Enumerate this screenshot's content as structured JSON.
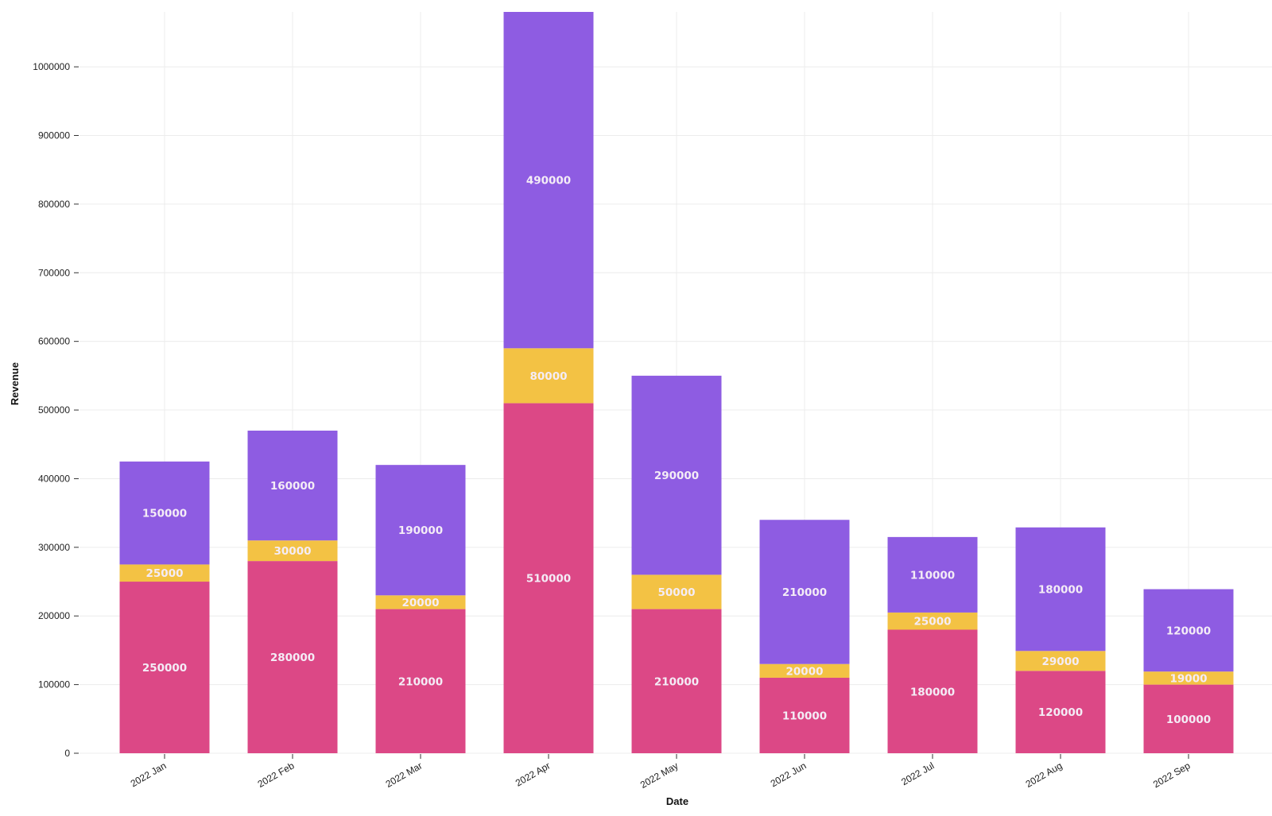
{
  "chart_data": {
    "type": "bar",
    "stacked": true,
    "categories": [
      "2022 Jan",
      "2022 Feb",
      "2022 Mar",
      "2022 Apr",
      "2022 May",
      "2022 Jun",
      "2022 Jul",
      "2022 Aug",
      "2022 Sep"
    ],
    "series": [
      {
        "color": "#DC4886",
        "values": [
          250000,
          280000,
          210000,
          510000,
          210000,
          110000,
          180000,
          120000,
          100000
        ]
      },
      {
        "color": "#F3C244",
        "values": [
          25000,
          30000,
          20000,
          80000,
          50000,
          20000,
          25000,
          29000,
          19000
        ]
      },
      {
        "color": "#8E5CE2",
        "values": [
          150000,
          160000,
          190000,
          490000,
          290000,
          210000,
          110000,
          180000,
          120000
        ]
      }
    ],
    "xlabel": "Date",
    "ylabel": "Revenue",
    "ylim": [
      0,
      1080000
    ],
    "yticks": [
      0,
      100000,
      200000,
      300000,
      400000,
      500000,
      600000,
      700000,
      800000,
      900000,
      1000000
    ],
    "grid": true,
    "legend": "none"
  }
}
